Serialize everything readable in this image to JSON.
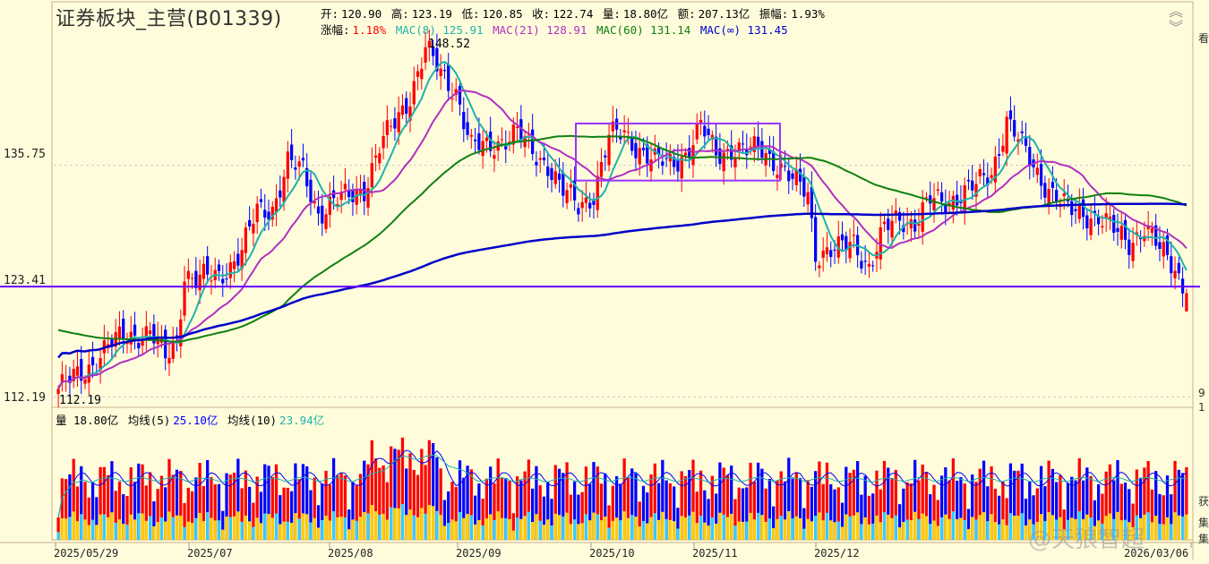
{
  "title": "证券板块_主营(B01339)",
  "header": {
    "open_label": "开:",
    "open": "120.90",
    "high_label": "高:",
    "high": "123.19",
    "low_label": "低:",
    "low": "120.85",
    "close_label": "收:",
    "close": "122.74",
    "vol_label": "量:",
    "vol": "18.80亿",
    "amount_label": "额:",
    "amount": "207.13亿",
    "amp_label": "振幅:",
    "amp": "1.93%",
    "chg_label": "涨幅:",
    "chg": "1.18%",
    "mac8": "MAC(8) 125.91",
    "mac21": "MAC(21) 128.91",
    "mac60": "MAC(60) 131.14",
    "macinf": "MAC(∞) 131.45"
  },
  "volume_header": {
    "vol": "量 18.80亿",
    "ma5_label": "均线(5)",
    "ma5": "25.10亿",
    "ma10_label": "均线(10)",
    "ma10": "23.94亿"
  },
  "annotations": {
    "max": "148.52",
    "min": "112.19"
  },
  "watermark": "@天狼智超",
  "right_labels": [
    "看",
    "9",
    "1",
    "获",
    "集",
    "集"
  ],
  "colors": {
    "up": "#ff0000",
    "down": "#0000ff",
    "mac8": "#20b2aa",
    "mac21": "#b030c0",
    "mac60": "#108010",
    "macinf": "#0000c8",
    "box": "#9933ff",
    "hline": "#6600ff"
  },
  "chart_data": {
    "type": "candlestick",
    "ylim": [
      112.19,
      148.52
    ],
    "y_ticks": [
      "135.75",
      "123.41",
      "112.19"
    ],
    "x_ticks": [
      "2025/05/29",
      "2025/07",
      "2025/08",
      "2025/09",
      "2025/10",
      "2025/11",
      "2025/12",
      "2026/03/06"
    ],
    "horizontal_line": 123.41,
    "volume_axis_max": 30
  }
}
